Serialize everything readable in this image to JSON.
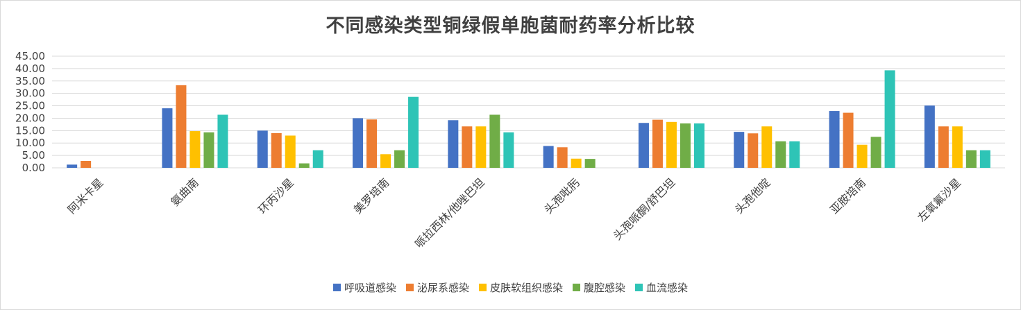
{
  "chart_data": {
    "type": "bar",
    "title": "不同感染类型铜绿假单胞菌耐药率分析比较",
    "xlabel": "",
    "ylabel": "",
    "ylim": [
      0,
      45
    ],
    "y_ticks": [
      "0.00",
      "5.00",
      "10.00",
      "15.00",
      "20.00",
      "25.00",
      "30.00",
      "35.00",
      "40.00",
      "45.00"
    ],
    "grid": true,
    "legend_position": "bottom",
    "categories": [
      "阿米卡星",
      "氨曲南",
      "环丙沙星",
      "美罗培南",
      "哌拉西林/他唑巴坦",
      "头孢吡肟",
      "头孢哌酮/舒巴坦",
      "头孢他啶",
      "亚胺培南",
      "左氧氟沙星"
    ],
    "series": [
      {
        "name": "呼吸道感染",
        "color": "#4472c4",
        "values": [
          1.3,
          24.0,
          15.0,
          20.0,
          19.2,
          8.8,
          18.1,
          14.5,
          22.9,
          25.1
        ]
      },
      {
        "name": "泌尿系感染",
        "color": "#ed7d31",
        "values": [
          2.8,
          33.3,
          14.0,
          19.5,
          16.7,
          8.3,
          19.4,
          13.9,
          22.2,
          16.7
        ]
      },
      {
        "name": "皮肤软组织感染",
        "color": "#ffc000",
        "values": [
          0,
          14.8,
          13.0,
          5.5,
          16.7,
          3.7,
          18.5,
          16.7,
          9.3,
          16.7
        ]
      },
      {
        "name": "腹腔感染",
        "color": "#70ad47",
        "values": [
          0,
          14.3,
          1.8,
          7.1,
          21.4,
          3.6,
          17.9,
          10.7,
          12.5,
          7.1
        ]
      },
      {
        "name": "血流感染",
        "color": "#2ec4b6",
        "values": [
          0,
          21.4,
          7.1,
          28.6,
          14.3,
          0,
          17.9,
          10.7,
          39.3,
          7.1
        ]
      }
    ]
  }
}
